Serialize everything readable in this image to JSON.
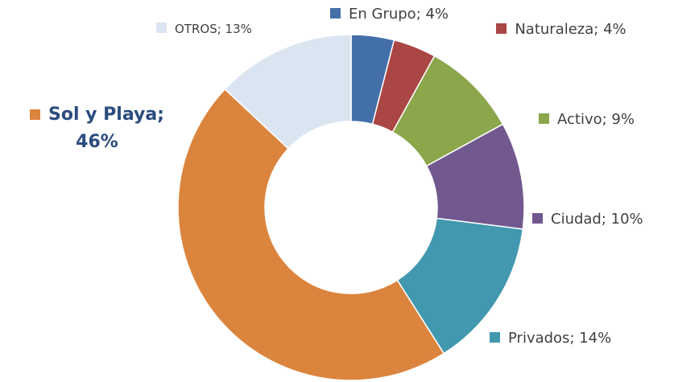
{
  "chart_data": {
    "type": "pie",
    "values": [
      4,
      4,
      9,
      10,
      14,
      46,
      13
    ],
    "value_labels": [
      "En Grupo; 4%",
      "Naturaleza; 4%",
      "Activo; 9%",
      "Ciudad; 10%",
      "Privados; 14%",
      "Sol y Playa; 46%",
      "OTROS; 13%"
    ],
    "colors": [
      "#4470aa",
      "#aa4644",
      "#8ba64b",
      "#71588f",
      "#4198af",
      "#db843d",
      "#dbe5f1"
    ]
  }
}
